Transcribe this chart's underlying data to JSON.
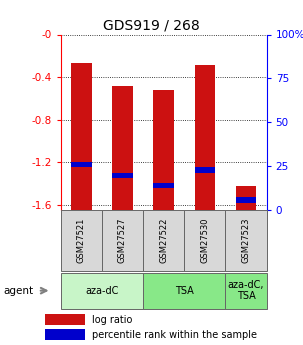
{
  "title": "GDS919 / 268",
  "samples": [
    "GSM27521",
    "GSM27527",
    "GSM27522",
    "GSM27530",
    "GSM27523"
  ],
  "log_ratios": [
    -0.27,
    -0.48,
    -0.52,
    -0.29,
    -1.42
  ],
  "percentile_ranks_pct": [
    26,
    20,
    14,
    23,
    6
  ],
  "ylim_left": [
    -1.65,
    0.0
  ],
  "ylim_right": [
    0,
    100
  ],
  "yticks_left": [
    0.0,
    -0.4,
    -0.8,
    -1.2,
    -1.6
  ],
  "yticks_right": [
    100,
    75,
    50,
    25,
    0
  ],
  "bar_color": "#cc1111",
  "percentile_color": "#0000cc",
  "bar_width": 0.5,
  "group_configs": [
    {
      "start": 0,
      "end": 1,
      "label": "aza-dC",
      "color": "#c8f5c8"
    },
    {
      "start": 2,
      "end": 3,
      "label": "TSA",
      "color": "#88e888"
    },
    {
      "start": 4,
      "end": 4,
      "label": "aza-dC,\nTSA",
      "color": "#88e888"
    }
  ],
  "legend_items": [
    {
      "color": "#cc1111",
      "label": "log ratio"
    },
    {
      "color": "#0000cc",
      "label": "percentile rank within the sample"
    }
  ]
}
